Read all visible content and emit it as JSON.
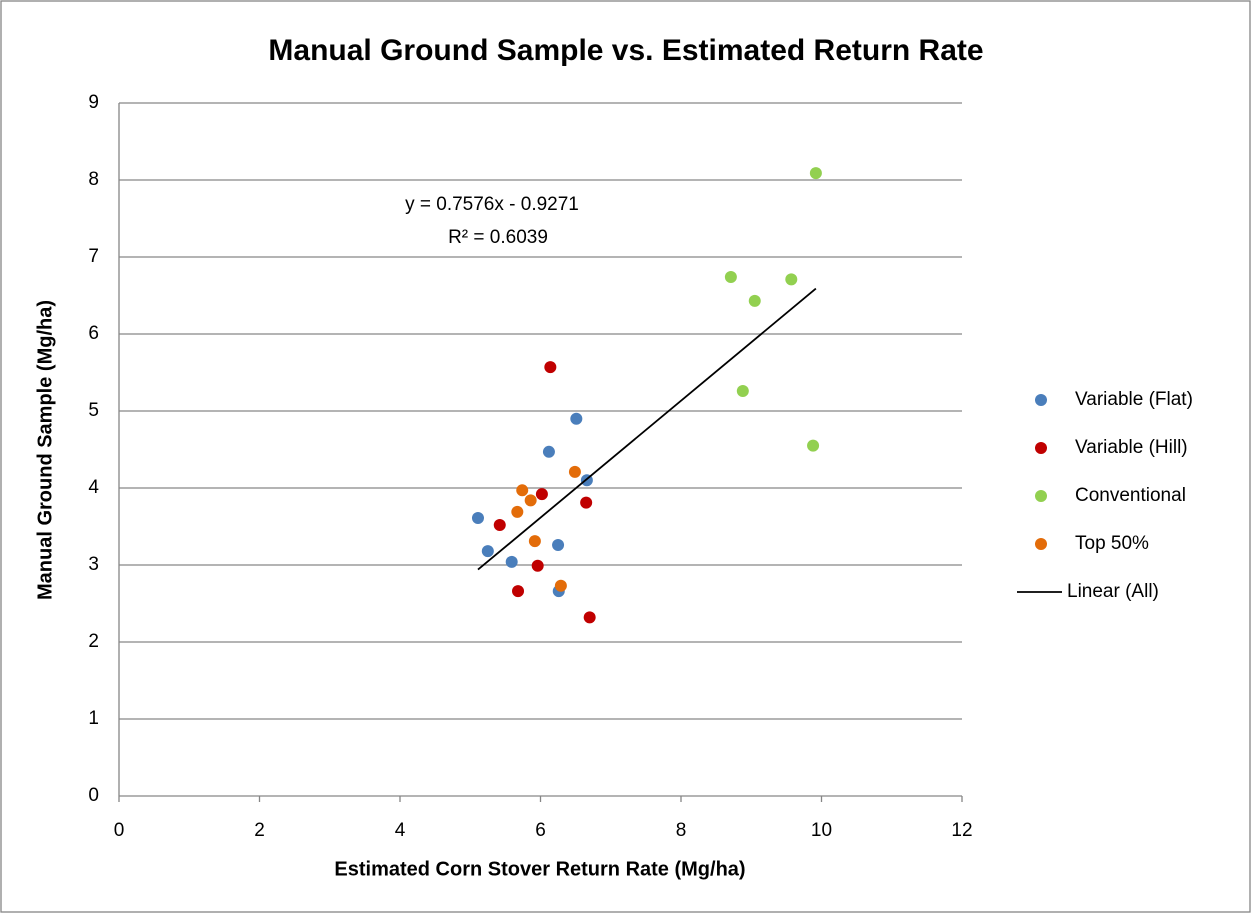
{
  "chart_data": {
    "type": "scatter",
    "title": "Manual Ground Sample vs. Estimated Return Rate",
    "xlabel": "Estimated Corn Stover Return Rate (Mg/ha)",
    "ylabel": "Manual Ground Sample (Mg/ha)",
    "xlim": [
      0,
      12
    ],
    "xticks": [
      0,
      2,
      4,
      6,
      8,
      10,
      12
    ],
    "ylim": [
      0,
      9
    ],
    "yticks": [
      0,
      1,
      2,
      3,
      4,
      5,
      6,
      7,
      8,
      9
    ],
    "grid": true,
    "legend": "right",
    "series": [
      {
        "name": "Variable (Flat)",
        "color": "#4a7ebb",
        "x": [
          5.11,
          5.25,
          5.59,
          6.12,
          6.51,
          6.66,
          6.25,
          6.26
        ],
        "values": [
          3.61,
          3.18,
          3.04,
          4.47,
          4.9,
          4.1,
          3.26,
          2.66
        ]
      },
      {
        "name": "Variable (Hill)",
        "color": "#c00000",
        "x": [
          6.14,
          5.42,
          6.02,
          6.65,
          5.96,
          5.68,
          6.7
        ],
        "values": [
          5.57,
          3.52,
          3.92,
          3.81,
          2.99,
          2.66,
          2.32
        ]
      },
      {
        "name": "Conventional",
        "color": "#92d050",
        "x": [
          9.92,
          8.71,
          9.05,
          9.57,
          8.88,
          9.88
        ],
        "values": [
          8.09,
          6.74,
          6.43,
          6.71,
          5.26,
          4.55
        ]
      },
      {
        "name": "Top 50%",
        "color": "#e36c09",
        "x": [
          6.49,
          5.74,
          5.86,
          5.67,
          5.92,
          6.29
        ],
        "values": [
          4.21,
          3.97,
          3.84,
          3.69,
          3.31,
          2.73
        ]
      }
    ],
    "trendline": {
      "name": "Linear (All)",
      "color": "#000000",
      "x": [
        5.11,
        9.92
      ],
      "values": [
        2.94,
        6.59
      ]
    },
    "annotations": [
      "y = 0.7576x - 0.9271",
      "R² = 0.6039"
    ]
  }
}
